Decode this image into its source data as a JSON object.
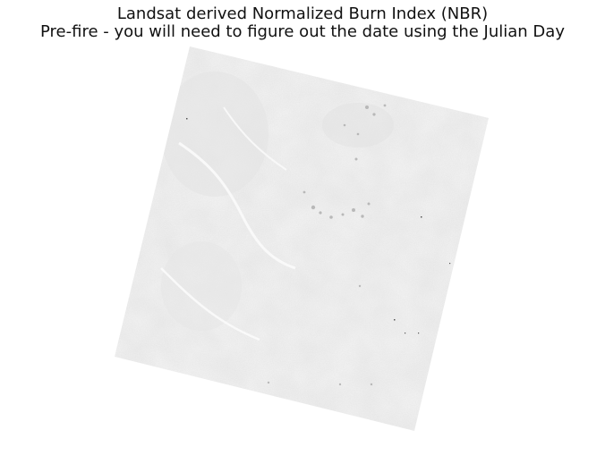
{
  "figure": {
    "title_line1": "Landsat derived Normalized Burn Index (NBR)",
    "title_line2": "Pre-fire - you will need to figure out the date using the Julian Day",
    "background_color": "#ffffff",
    "scene_fill_color": "#f2f2f2",
    "scene_shadow_color": "#dcdcdc",
    "scene_dark_speck_color": "#999999"
  }
}
